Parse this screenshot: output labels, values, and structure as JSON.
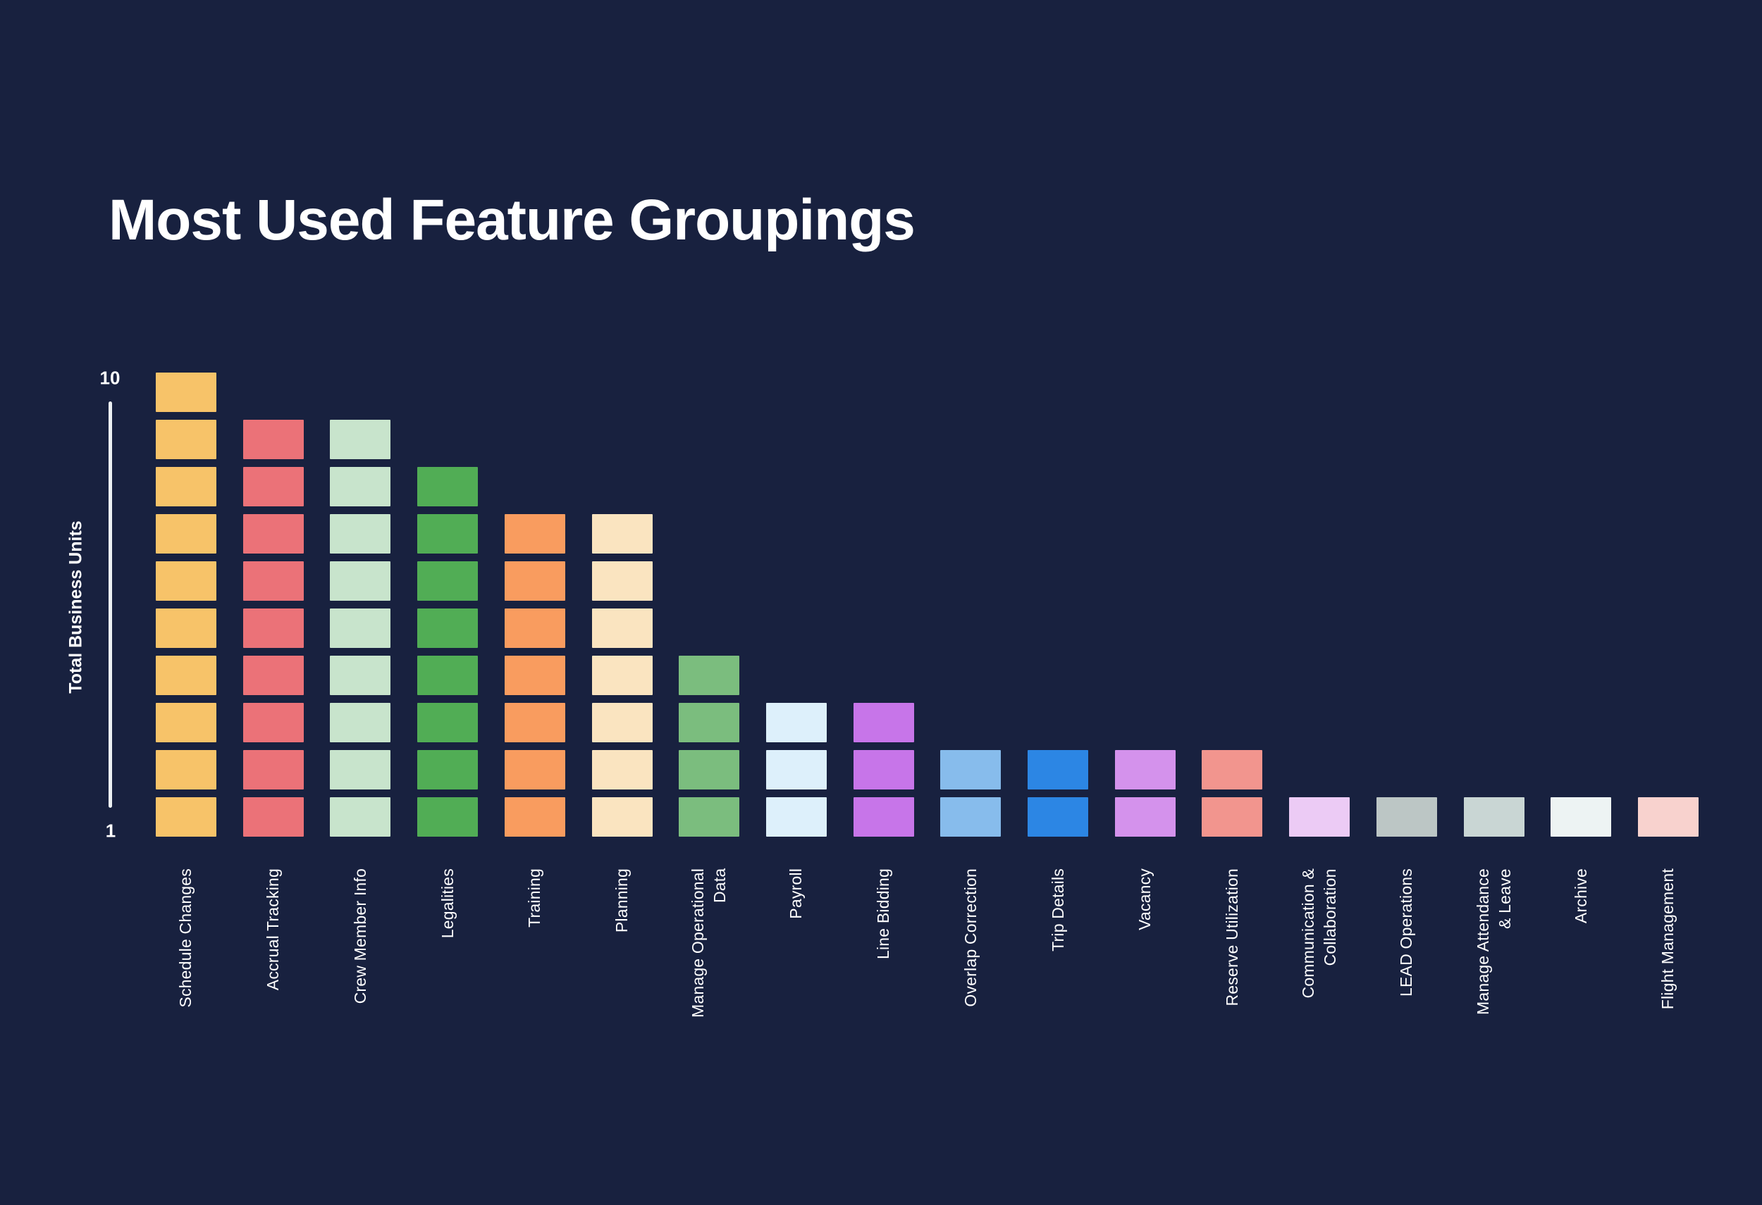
{
  "page": {
    "background": "#18213F",
    "text_color": "#FFFFFF"
  },
  "chart_data": {
    "type": "bar",
    "variant": "unit-stacked-columns",
    "title": "Most Used Feature Groupings",
    "ylabel": "Total Business Units",
    "yticks": [
      "10",
      "1"
    ],
    "ylim": [
      1,
      10
    ],
    "grid": false,
    "legend": false,
    "axis_color": "#EDF2F4",
    "categories": [
      "Schedule Changes",
      "Accrual Tracking",
      "Crew Member Info",
      "Legalities",
      "Training",
      "Planning",
      "Manage Operational\nData",
      "Payroll",
      "Line Bidding",
      "Overlap Correction",
      "Trip Details",
      "Vacancy",
      "Reserve Utilization",
      "Communication &\nCollaboration",
      "LEAD Operations",
      "Manage Attendance\n& Leave",
      "Archive",
      "Flight Management"
    ],
    "values": [
      10,
      9,
      9,
      8,
      7,
      7,
      4,
      3,
      3,
      2,
      2,
      2,
      2,
      1,
      1,
      1,
      1,
      1
    ],
    "colors": [
      "#F7C369",
      "#EB7278",
      "#C8E4CC",
      "#51AD55",
      "#F99C5F",
      "#FAE4C0",
      "#7BBD7E",
      "#DDF0FB",
      "#C775E9",
      "#87BCEC",
      "#2C86E4",
      "#D492EC",
      "#F2958E",
      "#ECCBF5",
      "#BCC6C5",
      "#C9D6D4",
      "#EDF3F3",
      "#F8D2CE"
    ]
  }
}
